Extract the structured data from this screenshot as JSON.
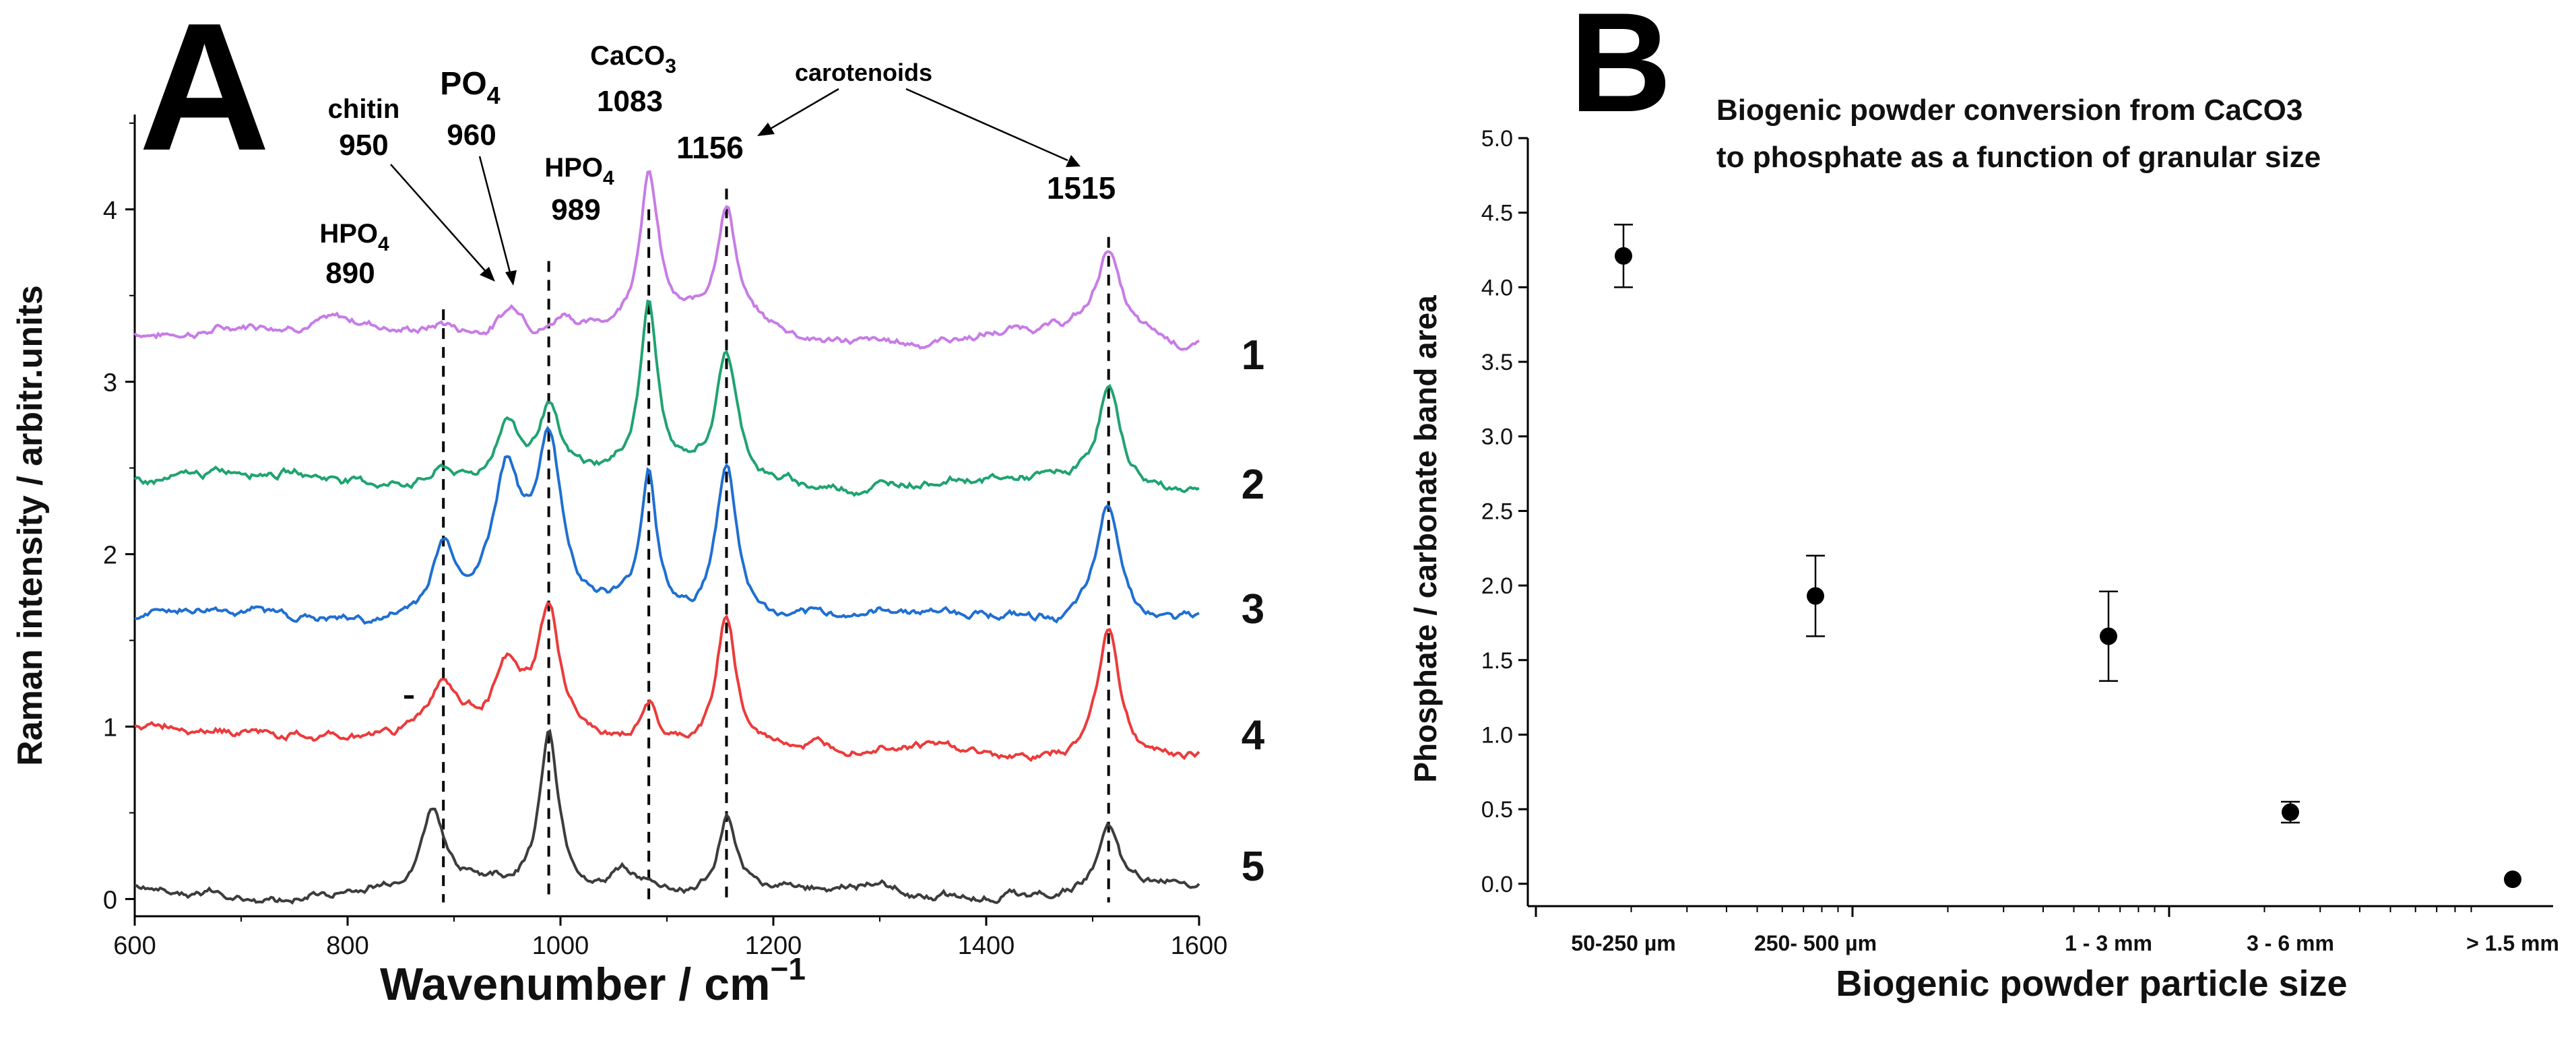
{
  "chart_data": [
    {
      "panel": "A",
      "type": "line",
      "xlabel": "Wavenumber / cm",
      "xlabel_sup": "−1",
      "ylabel": "Raman intensity / arbitr.units",
      "xlim": [
        600,
        1600
      ],
      "ylim": [
        -0.1,
        4.55
      ],
      "xticks": [
        600,
        800,
        1000,
        1200,
        1400,
        1600
      ],
      "yticks": [
        0,
        1,
        2,
        3,
        4
      ],
      "grid": false,
      "series": [
        {
          "name": "1",
          "color": "#c77ce6",
          "baseline": 3.32,
          "slope": -0.08,
          "peaks": [
            [
              890,
              0.05,
              10
            ],
            [
              950,
              0.1,
              16
            ],
            [
              960,
              0.1,
              12
            ],
            [
              1005,
              0.12,
              12
            ],
            [
              1083,
              0.9,
              11
            ],
            [
              1156,
              0.72,
              12
            ],
            [
              1515,
              0.5,
              13
            ]
          ]
        },
        {
          "name": "2",
          "color": "#1fa371",
          "baseline": 2.45,
          "slope": -0.05,
          "peaks": [
            [
              890,
              0.1,
              14
            ],
            [
              950,
              0.35,
              14
            ],
            [
              989,
              0.42,
              12
            ],
            [
              1083,
              0.98,
              10
            ],
            [
              1156,
              0.72,
              12
            ],
            [
              1515,
              0.58,
              13
            ]
          ]
        },
        {
          "name": "3",
          "color": "#1f6fd1",
          "baseline": 1.62,
          "slope": 0.0,
          "peaks": [
            [
              890,
              0.4,
              14
            ],
            [
              950,
              0.8,
              16
            ],
            [
              989,
              0.95,
              14
            ],
            [
              1083,
              0.8,
              9
            ],
            [
              1156,
              0.92,
              12
            ],
            [
              1515,
              0.7,
              14
            ]
          ]
        },
        {
          "name": "4",
          "color": "#ec3b3b",
          "baseline": 0.98,
          "slope": -0.18,
          "peaks": [
            [
              890,
              0.3,
              16
            ],
            [
              950,
              0.35,
              16
            ],
            [
              989,
              0.68,
              13
            ],
            [
              1083,
              0.26,
              9
            ],
            [
              1156,
              0.8,
              11
            ],
            [
              1515,
              0.8,
              13
            ]
          ]
        },
        {
          "name": "5",
          "color": "#3c3c3c",
          "baseline": 0.05,
          "slope": 0.0,
          "peaks": [
            [
              880,
              0.43,
              13
            ],
            [
              989,
              0.92,
              10
            ],
            [
              1060,
              0.14,
              20
            ],
            [
              1156,
              0.42,
              9
            ],
            [
              1515,
              0.37,
              11
            ]
          ]
        }
      ],
      "annotations": [
        {
          "id": "hpo4_890",
          "name": "HPO",
          "sub": "4",
          "value": "890",
          "x": 890
        },
        {
          "id": "chitin_950",
          "name": "chitin",
          "sub": "",
          "value": "950",
          "x": 950
        },
        {
          "id": "po4_960",
          "name": "PO",
          "sub": "4",
          "value": "960",
          "x": 960
        },
        {
          "id": "hpo4_989",
          "name": "HPO",
          "sub": "4",
          "value": "989",
          "x": 989
        },
        {
          "id": "caco3_1083",
          "name": "CaCO",
          "sub": "3",
          "value": "1083",
          "x": 1083
        },
        {
          "id": "car_1156",
          "name": "",
          "sub": "",
          "value": "1156",
          "x": 1156
        },
        {
          "id": "car_1515",
          "name": "",
          "sub": "",
          "value": "1515",
          "x": 1515
        },
        {
          "id": "carotenoids",
          "name": "carotenoids",
          "sub": "",
          "value": "",
          "x": null
        }
      ]
    },
    {
      "panel": "B",
      "type": "scatter",
      "title_lines": [
        "Biogenic powder conversion from CaCO3",
        "to phosphate as a function of granular size"
      ],
      "xlabel": "Biogenic powder particle size",
      "ylabel": "Phosphate / carbonate band area",
      "ylim": [
        -0.15,
        5.0
      ],
      "yticks": [
        "0.0",
        "0.5",
        "1.0",
        "1.5",
        "2.0",
        "2.5",
        "3.0",
        "3.5",
        "4.0",
        "4.5",
        "5.0"
      ],
      "categories": [
        "50-250 µm",
        "250- 500 µm",
        "1 - 3 mm",
        "3 - 6 mm",
        "> 1.5 mm"
      ],
      "x_axis_scale": "log",
      "grid": false,
      "points": [
        {
          "category": "50-250 µm",
          "y": 4.21,
          "err": 0.21
        },
        {
          "category": "250- 500 µm",
          "y": 1.93,
          "err": 0.27
        },
        {
          "category": "1 - 3 mm",
          "y": 1.66,
          "err": 0.3
        },
        {
          "category": "3 - 6 mm",
          "y": 0.48,
          "err": 0.07
        },
        {
          "category": "> 1.5 mm",
          "y": 0.03,
          "err": 0.0
        }
      ]
    }
  ]
}
